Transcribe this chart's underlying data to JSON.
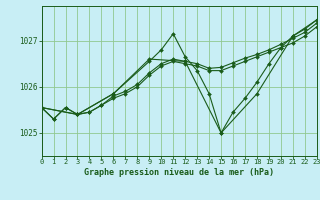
{
  "title": "Graphe pression niveau de la mer (hPa)",
  "bg_color": "#c8eef5",
  "grid_color": "#90c890",
  "line_color": "#1a5c1a",
  "xlim": [
    0,
    23
  ],
  "ylim": [
    1024.5,
    1027.75
  ],
  "yticks": [
    1025,
    1026,
    1027
  ],
  "xticks": [
    0,
    1,
    2,
    3,
    4,
    5,
    6,
    7,
    8,
    9,
    10,
    11,
    12,
    13,
    14,
    15,
    16,
    17,
    18,
    19,
    20,
    21,
    22,
    23
  ],
  "lines": [
    {
      "x": [
        0,
        1,
        2,
        3,
        4,
        5,
        6,
        7,
        8,
        9,
        10,
        11,
        12,
        13,
        14,
        15,
        16,
        17,
        18,
        19,
        20,
        21,
        22,
        23
      ],
      "y": [
        1025.55,
        1025.3,
        1025.55,
        1025.4,
        1025.45,
        1025.6,
        1025.75,
        1025.85,
        1026.0,
        1026.25,
        1026.45,
        1026.55,
        1026.5,
        1026.45,
        1026.35,
        1026.35,
        1026.45,
        1026.55,
        1026.65,
        1026.75,
        1026.85,
        1026.95,
        1027.1,
        1027.3
      ]
    },
    {
      "x": [
        0,
        1,
        2,
        3,
        4,
        5,
        6,
        7,
        8,
        9,
        10,
        11,
        12,
        13,
        14,
        15,
        16,
        17,
        18,
        19,
        20,
        21,
        22,
        23
      ],
      "y": [
        1025.55,
        1025.3,
        1025.55,
        1025.4,
        1025.45,
        1025.6,
        1025.8,
        1025.9,
        1026.05,
        1026.3,
        1026.5,
        1026.6,
        1026.55,
        1026.5,
        1026.4,
        1026.42,
        1026.52,
        1026.62,
        1026.7,
        1026.8,
        1026.92,
        1027.05,
        1027.18,
        1027.38
      ]
    },
    {
      "x": [
        0,
        3,
        6,
        9,
        10,
        11,
        12,
        13,
        14,
        15,
        16,
        17,
        18,
        19,
        20,
        21,
        22,
        23
      ],
      "y": [
        1025.55,
        1025.4,
        1025.85,
        1026.55,
        1026.8,
        1027.15,
        1026.65,
        1026.35,
        1025.85,
        1025.0,
        1025.45,
        1025.75,
        1026.1,
        1026.5,
        1026.85,
        1027.1,
        1027.25,
        1027.45
      ]
    },
    {
      "x": [
        0,
        3,
        6,
        9,
        12,
        15,
        18,
        21,
        23
      ],
      "y": [
        1025.55,
        1025.4,
        1025.85,
        1026.6,
        1026.55,
        1025.0,
        1025.85,
        1027.1,
        1027.45
      ]
    }
  ]
}
